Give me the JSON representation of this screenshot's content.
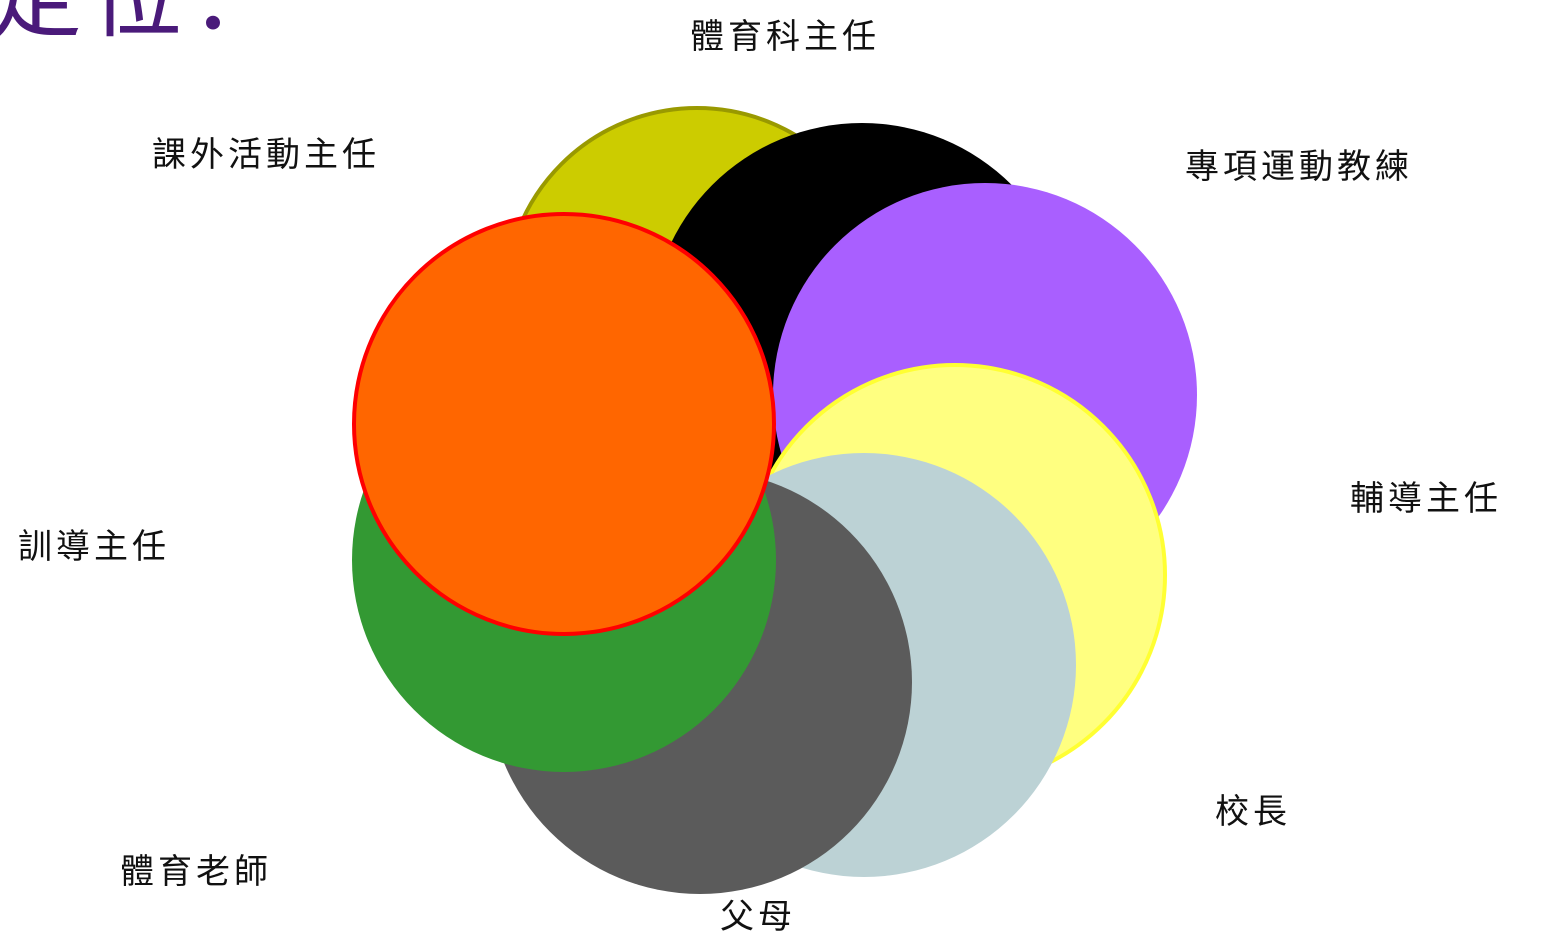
{
  "title_fragment": "定位：",
  "roles": {
    "pe_head": {
      "label": "體育科主任",
      "color": "#000000"
    },
    "specialist_coach": {
      "label": "專項運動教練",
      "color": "#a95fff"
    },
    "counseling_director": {
      "label": "輔導主任",
      "color": "#ffff80"
    },
    "principal": {
      "label": "校長",
      "color": "#bcd2d5"
    },
    "parents": {
      "label": "父母",
      "color": "#5b5b5b"
    },
    "pe_teacher": {
      "label": "體育老師",
      "color": "#339933"
    },
    "discipline_director": {
      "label": "訓導主任",
      "color": "#ff6600"
    },
    "extracurricular_director": {
      "label": "課外活動主任",
      "color": "#cccc00"
    }
  }
}
